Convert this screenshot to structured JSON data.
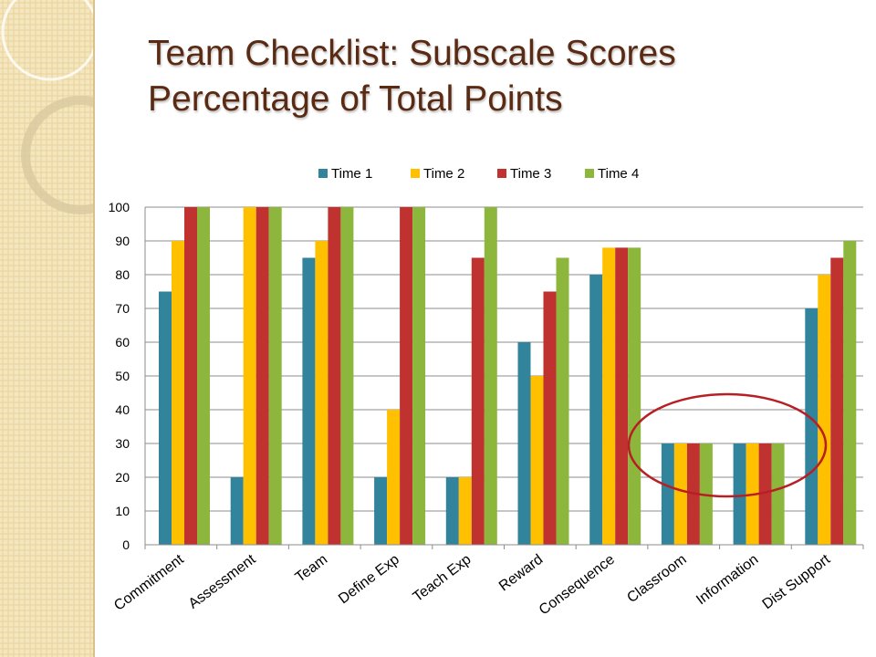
{
  "slide": {
    "title_line1": "Team Checklist: Subscale Scores",
    "title_line2": "Percentage of Total Points"
  },
  "colors": {
    "title": "#5a2a12",
    "time1": "#31849b",
    "time2": "#ffc000",
    "time3": "#c0322f",
    "time4": "#8db63c",
    "highlight_ring": "#b81f24"
  },
  "chart_data": {
    "type": "bar",
    "categories": [
      "Commitment",
      "Assessment",
      "Team",
      "Define Exp",
      "Teach Exp",
      "Reward",
      "Consequence",
      "Classroom",
      "Information",
      "Dist Support"
    ],
    "series": [
      {
        "name": "Time 1",
        "color": "#31849b",
        "values": [
          75,
          20,
          85,
          20,
          20,
          60,
          80,
          30,
          30,
          70
        ]
      },
      {
        "name": "Time 2",
        "color": "#ffc000",
        "values": [
          90,
          100,
          90,
          40,
          20,
          50,
          88,
          30,
          30,
          80
        ]
      },
      {
        "name": "Time 3",
        "color": "#c0322f",
        "values": [
          100,
          100,
          100,
          100,
          85,
          75,
          88,
          30,
          30,
          85
        ]
      },
      {
        "name": "Time 4",
        "color": "#8db63c",
        "values": [
          100,
          100,
          100,
          100,
          100,
          85,
          88,
          30,
          30,
          90
        ]
      }
    ],
    "ylim": [
      0,
      100
    ],
    "yticks": [
      0,
      10,
      20,
      30,
      40,
      50,
      60,
      70,
      80,
      90,
      100
    ],
    "grid": true,
    "legend_position": "top",
    "annotation": {
      "type": "ellipse",
      "note": "highlights Classroom and Information"
    }
  }
}
